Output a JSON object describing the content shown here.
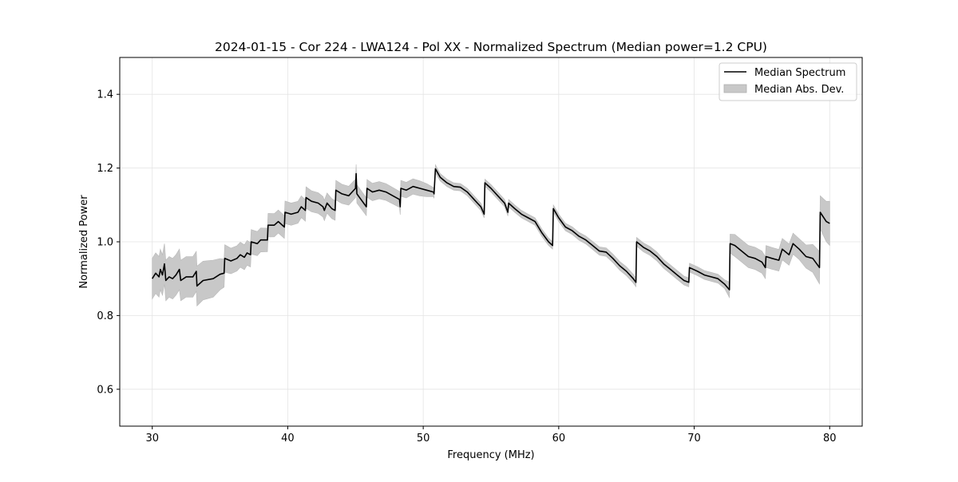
{
  "chart_data": {
    "type": "line",
    "title": "2024-01-15 - Cor 224 - LWA124 - Pol XX - Normalized Spectrum (Median power=1.2 CPU)",
    "xlabel": "Frequency (MHz)",
    "ylabel": "Normalized Power",
    "xlim": [
      27.6,
      82.4
    ],
    "ylim": [
      0.5,
      1.5
    ],
    "xticks": [
      30,
      40,
      50,
      60,
      70,
      80
    ],
    "yticks": [
      0.6,
      0.8,
      1.0,
      1.2,
      1.4
    ],
    "xtick_labels": [
      "30",
      "40",
      "50",
      "60",
      "70",
      "80"
    ],
    "ytick_labels": [
      "0.6",
      "0.8",
      "1.0",
      "1.2",
      "1.4"
    ],
    "grid": true,
    "legend_position": "top-right",
    "legend": [
      {
        "label": "Median Spectrum",
        "kind": "line",
        "color": "#000000"
      },
      {
        "label": "Median Abs. Dev.",
        "kind": "band",
        "color": "#c8c8c8"
      }
    ],
    "series": [
      {
        "name": "Median Spectrum",
        "color": "#000000",
        "points": [
          [
            30.0,
            0.9
          ],
          [
            30.25,
            0.915
          ],
          [
            30.5,
            0.905
          ],
          [
            30.6,
            0.925
          ],
          [
            30.75,
            0.91
          ],
          [
            30.9,
            0.94
          ],
          [
            31.0,
            0.895
          ],
          [
            31.25,
            0.905
          ],
          [
            31.5,
            0.9
          ],
          [
            31.75,
            0.91
          ],
          [
            32.0,
            0.925
          ],
          [
            32.1,
            0.895
          ],
          [
            32.5,
            0.905
          ],
          [
            33.0,
            0.905
          ],
          [
            33.25,
            0.92
          ],
          [
            33.3,
            0.88
          ],
          [
            33.75,
            0.895
          ],
          [
            34.5,
            0.9
          ],
          [
            35.0,
            0.912
          ],
          [
            35.3,
            0.915
          ],
          [
            35.35,
            0.955
          ],
          [
            35.8,
            0.948
          ],
          [
            36.25,
            0.955
          ],
          [
            36.5,
            0.965
          ],
          [
            36.8,
            0.958
          ],
          [
            37.0,
            0.97
          ],
          [
            37.25,
            0.965
          ],
          [
            37.3,
            1.0
          ],
          [
            37.75,
            0.995
          ],
          [
            38.0,
            1.005
          ],
          [
            38.5,
            1.005
          ],
          [
            38.55,
            1.045
          ],
          [
            39.0,
            1.045
          ],
          [
            39.3,
            1.055
          ],
          [
            39.75,
            1.04
          ],
          [
            39.8,
            1.08
          ],
          [
            40.25,
            1.075
          ],
          [
            40.75,
            1.08
          ],
          [
            41.0,
            1.095
          ],
          [
            41.3,
            1.085
          ],
          [
            41.35,
            1.12
          ],
          [
            41.75,
            1.11
          ],
          [
            42.25,
            1.105
          ],
          [
            42.6,
            1.095
          ],
          [
            42.7,
            1.085
          ],
          [
            42.9,
            1.105
          ],
          [
            43.25,
            1.09
          ],
          [
            43.5,
            1.085
          ],
          [
            43.55,
            1.14
          ],
          [
            44.0,
            1.13
          ],
          [
            44.5,
            1.125
          ],
          [
            45.0,
            1.145
          ],
          [
            45.05,
            1.185
          ],
          [
            45.1,
            1.13
          ],
          [
            45.5,
            1.11
          ],
          [
            45.8,
            1.095
          ],
          [
            45.85,
            1.145
          ],
          [
            46.25,
            1.135
          ],
          [
            46.75,
            1.14
          ],
          [
            47.25,
            1.135
          ],
          [
            47.75,
            1.125
          ],
          [
            48.25,
            1.115
          ],
          [
            48.3,
            1.095
          ],
          [
            48.35,
            1.145
          ],
          [
            48.75,
            1.14
          ],
          [
            49.25,
            1.15
          ],
          [
            49.75,
            1.145
          ],
          [
            50.25,
            1.14
          ],
          [
            50.75,
            1.135
          ],
          [
            50.8,
            1.13
          ],
          [
            50.9,
            1.198
          ],
          [
            51.25,
            1.175
          ],
          [
            51.75,
            1.16
          ],
          [
            52.25,
            1.15
          ],
          [
            52.75,
            1.148
          ],
          [
            53.25,
            1.135
          ],
          [
            53.75,
            1.115
          ],
          [
            54.25,
            1.095
          ],
          [
            54.5,
            1.075
          ],
          [
            54.55,
            1.16
          ],
          [
            55.0,
            1.145
          ],
          [
            55.5,
            1.125
          ],
          [
            56.0,
            1.105
          ],
          [
            56.25,
            1.08
          ],
          [
            56.3,
            1.105
          ],
          [
            56.75,
            1.09
          ],
          [
            57.25,
            1.075
          ],
          [
            57.75,
            1.065
          ],
          [
            58.25,
            1.055
          ],
          [
            58.75,
            1.025
          ],
          [
            59.25,
            1.0
          ],
          [
            59.55,
            0.99
          ],
          [
            59.6,
            1.09
          ],
          [
            60.0,
            1.065
          ],
          [
            60.5,
            1.04
          ],
          [
            61.0,
            1.03
          ],
          [
            61.5,
            1.015
          ],
          [
            62.0,
            1.005
          ],
          [
            62.5,
            0.99
          ],
          [
            63.0,
            0.975
          ],
          [
            63.5,
            0.972
          ],
          [
            64.0,
            0.955
          ],
          [
            64.5,
            0.935
          ],
          [
            65.0,
            0.92
          ],
          [
            65.5,
            0.9
          ],
          [
            65.7,
            0.89
          ],
          [
            65.75,
            1.0
          ],
          [
            66.25,
            0.985
          ],
          [
            66.75,
            0.975
          ],
          [
            67.25,
            0.96
          ],
          [
            67.75,
            0.94
          ],
          [
            68.25,
            0.925
          ],
          [
            68.75,
            0.91
          ],
          [
            69.25,
            0.895
          ],
          [
            69.6,
            0.89
          ],
          [
            69.65,
            0.93
          ],
          [
            70.25,
            0.92
          ],
          [
            70.75,
            0.91
          ],
          [
            71.25,
            0.905
          ],
          [
            71.75,
            0.9
          ],
          [
            72.25,
            0.885
          ],
          [
            72.6,
            0.87
          ],
          [
            72.65,
            0.995
          ],
          [
            73.0,
            0.99
          ],
          [
            73.5,
            0.975
          ],
          [
            74.0,
            0.96
          ],
          [
            74.5,
            0.955
          ],
          [
            75.0,
            0.945
          ],
          [
            75.25,
            0.93
          ],
          [
            75.3,
            0.96
          ],
          [
            75.75,
            0.955
          ],
          [
            76.25,
            0.95
          ],
          [
            76.5,
            0.98
          ],
          [
            77.0,
            0.965
          ],
          [
            77.3,
            0.995
          ],
          [
            77.75,
            0.98
          ],
          [
            78.25,
            0.96
          ],
          [
            78.75,
            0.955
          ],
          [
            79.25,
            0.93
          ],
          [
            79.3,
            1.08
          ],
          [
            79.75,
            1.055
          ],
          [
            80.0,
            1.05
          ]
        ]
      }
    ],
    "band": {
      "name": "Median Abs. Dev.",
      "color": "#c8c8c8",
      "half_width": [
        [
          30.0,
          0.055
        ],
        [
          33.0,
          0.055
        ],
        [
          34.5,
          0.05
        ],
        [
          35.5,
          0.035
        ],
        [
          38.5,
          0.032
        ],
        [
          40.5,
          0.03
        ],
        [
          45.0,
          0.025
        ],
        [
          50.0,
          0.02
        ],
        [
          51.0,
          0.01
        ],
        [
          55.0,
          0.01
        ],
        [
          60.0,
          0.01
        ],
        [
          65.0,
          0.012
        ],
        [
          70.0,
          0.012
        ],
        [
          72.5,
          0.012
        ],
        [
          72.7,
          0.03
        ],
        [
          75.0,
          0.03
        ],
        [
          78.0,
          0.028
        ],
        [
          79.3,
          0.045
        ],
        [
          80.0,
          0.06
        ]
      ]
    }
  }
}
